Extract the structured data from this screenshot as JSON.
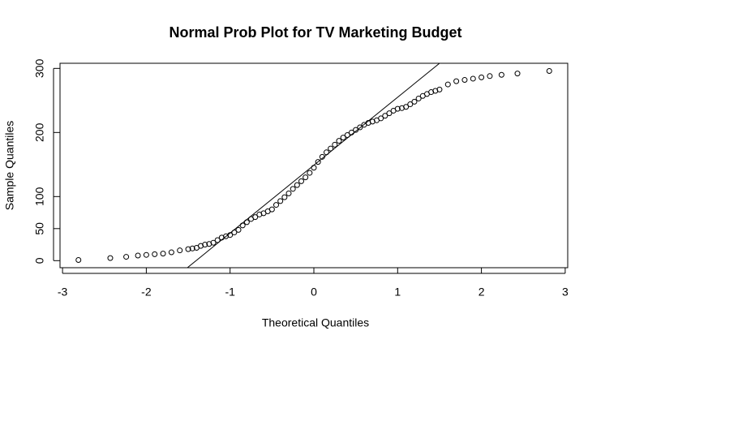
{
  "chart_data": {
    "type": "scatter",
    "title": "Normal Prob Plot for TV Marketing Budget",
    "x_label": "Theoretical Quantiles",
    "y_label": "Sample Quantiles",
    "x": [
      -2.81,
      -2.43,
      -2.24,
      -2.1,
      -2.0,
      -1.9,
      -1.8,
      -1.7,
      -1.6,
      -1.5,
      -1.45,
      -1.4,
      -1.35,
      -1.3,
      -1.25,
      -1.2,
      -1.15,
      -1.1,
      -1.05,
      -1.0,
      -0.95,
      -0.9,
      -0.85,
      -0.8,
      -0.75,
      -0.7,
      -0.65,
      -0.6,
      -0.55,
      -0.5,
      -0.45,
      -0.4,
      -0.35,
      -0.3,
      -0.25,
      -0.2,
      -0.15,
      -0.1,
      -0.05,
      0,
      0.05,
      0.1,
      0.15,
      0.2,
      0.25,
      0.3,
      0.35,
      0.4,
      0.45,
      0.5,
      0.55,
      0.6,
      0.65,
      0.7,
      0.75,
      0.8,
      0.85,
      0.9,
      0.95,
      1.0,
      1.05,
      1.1,
      1.15,
      1.2,
      1.25,
      1.3,
      1.35,
      1.4,
      1.45,
      1.5,
      1.6,
      1.7,
      1.8,
      1.9,
      2.0,
      2.1,
      2.24,
      2.43,
      2.81
    ],
    "values": [
      1,
      4,
      6,
      8,
      9,
      10,
      11,
      13,
      16,
      18,
      19,
      20,
      23,
      25,
      26,
      28,
      32,
      36,
      38,
      40,
      44,
      48,
      55,
      60,
      65,
      68,
      72,
      74,
      77,
      80,
      87,
      93,
      99,
      105,
      112,
      118,
      124,
      130,
      137,
      145,
      154,
      162,
      169,
      175,
      181,
      187,
      192,
      196,
      200,
      204,
      208,
      212,
      215,
      217,
      219,
      222,
      226,
      230,
      234,
      237,
      238,
      240,
      244,
      248,
      253,
      257,
      260,
      263,
      265,
      267,
      275,
      280,
      282,
      284,
      286,
      288,
      290,
      292,
      296
    ],
    "color": "#000000",
    "reference_line": {
      "intercept": 149,
      "slope": 106
    },
    "xlim": [
      -3.03,
      3.03
    ],
    "xticks": [
      -3,
      -2,
      -1,
      0,
      1,
      2,
      3
    ],
    "ylim": [
      -11,
      308
    ],
    "yticks": [
      0,
      50,
      100,
      200,
      300
    ],
    "grid": false
  }
}
